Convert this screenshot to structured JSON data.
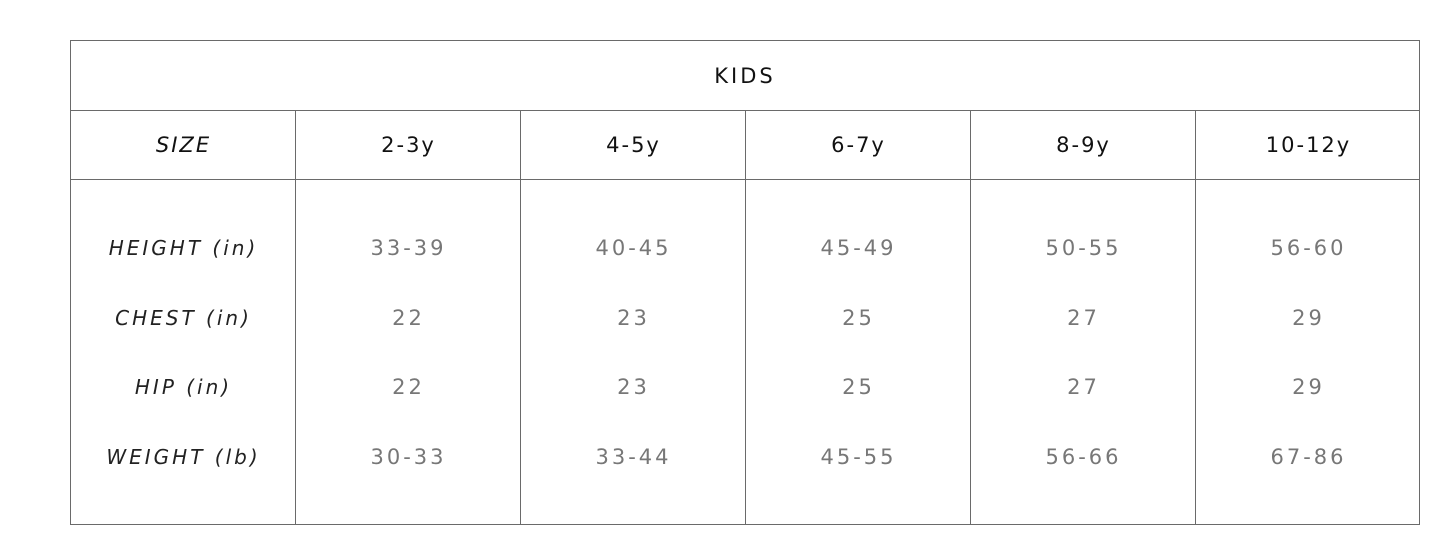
{
  "title": "KIDS",
  "header": [
    "SIZE",
    "2-3y",
    "4-5y",
    "6-7y",
    "8-9y",
    "10-12y"
  ],
  "rows": [
    {
      "label": "HEIGHT (in)",
      "values": [
        "33-39",
        "40-45",
        "45-49",
        "50-55",
        "56-60"
      ]
    },
    {
      "label": "CHEST (in)",
      "values": [
        "22",
        "23",
        "25",
        "27",
        "29"
      ]
    },
    {
      "label": "HIP (in)",
      "values": [
        "22",
        "23",
        "25",
        "27",
        "29"
      ]
    },
    {
      "label": "WEIGHT (lb)",
      "values": [
        "30-33",
        "33-44",
        "45-55",
        "56-66",
        "67-86"
      ]
    }
  ]
}
